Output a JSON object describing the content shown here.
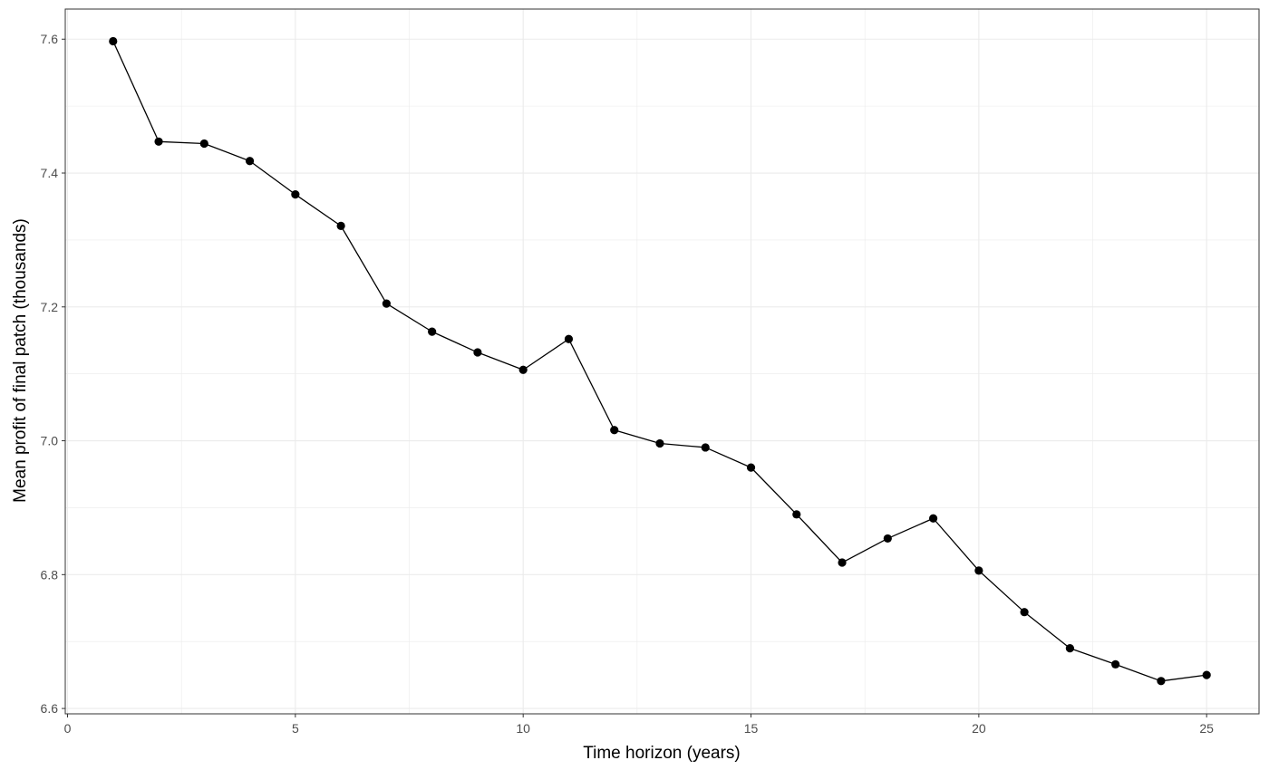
{
  "chart_data": {
    "type": "line",
    "title": "",
    "xlabel": "Time horizon (years)",
    "ylabel": "Mean profit of final patch (thousands)",
    "xlim": [
      -0.05,
      26.15
    ],
    "ylim": [
      6.592,
      7.645
    ],
    "x_ticks": [
      {
        "value": 0,
        "label": "0"
      },
      {
        "value": 5,
        "label": "5"
      },
      {
        "value": 10,
        "label": "10"
      },
      {
        "value": 15,
        "label": "15"
      },
      {
        "value": 20,
        "label": "20"
      },
      {
        "value": 25,
        "label": "25"
      }
    ],
    "y_ticks": [
      {
        "value": 6.6,
        "label": "6.6"
      },
      {
        "value": 6.8,
        "label": "6.8"
      },
      {
        "value": 7.0,
        "label": "7.0"
      },
      {
        "value": 7.2,
        "label": "7.2"
      },
      {
        "value": 7.4,
        "label": "7.4"
      },
      {
        "value": 7.6,
        "label": "7.6"
      }
    ],
    "x_minor": [
      2.5,
      7.5,
      12.5,
      17.5,
      22.5
    ],
    "y_minor": [
      6.7,
      6.9,
      7.1,
      7.3,
      7.5
    ],
    "grid": true,
    "colors": {
      "line": "#000000",
      "grid": "#ebebeb",
      "border": "#333333",
      "tick": "#333333"
    },
    "series": [
      {
        "x": [
          1,
          2,
          3,
          4,
          5,
          6,
          7,
          8,
          9,
          10,
          11,
          12,
          13,
          14,
          15,
          16,
          17,
          18,
          19,
          20,
          21,
          22,
          23,
          24,
          25
        ],
        "y": [
          7.597,
          7.447,
          7.444,
          7.418,
          7.368,
          7.321,
          7.205,
          7.163,
          7.132,
          7.106,
          7.152,
          7.016,
          6.996,
          6.99,
          6.96,
          6.89,
          6.818,
          6.854,
          6.884,
          6.806,
          6.744,
          6.69,
          6.666,
          6.641,
          6.65
        ]
      }
    ]
  }
}
